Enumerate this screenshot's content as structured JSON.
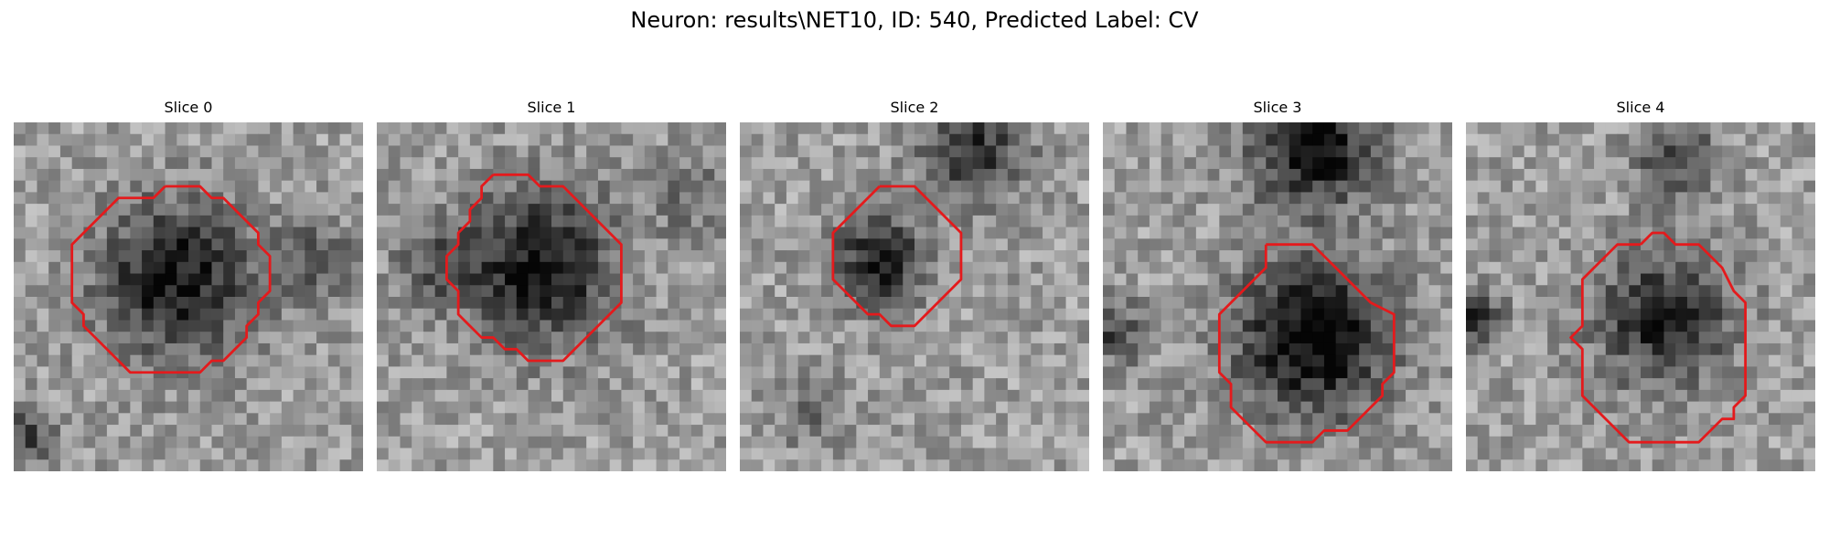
{
  "figure": {
    "suptitle": "Neuron: results\\NET10, ID: 540, Predicted Label: CV",
    "contour_color": "#e41a1c",
    "colormap": "gray",
    "grid_size": 30
  },
  "slices": [
    {
      "title": "Slice 0",
      "contour": [
        [
          13,
          5.5
        ],
        [
          16,
          5.5
        ],
        [
          17,
          6.5
        ],
        [
          18,
          6.5
        ],
        [
          19,
          7.5
        ],
        [
          20,
          8.5
        ],
        [
          21,
          9.5
        ],
        [
          21,
          10.5
        ],
        [
          22,
          11.5
        ],
        [
          22,
          14.5
        ],
        [
          21,
          15.5
        ],
        [
          21,
          16.5
        ],
        [
          20,
          17.5
        ],
        [
          20,
          18.5
        ],
        [
          19,
          19.5
        ],
        [
          18,
          20.5
        ],
        [
          17,
          20.5
        ],
        [
          16,
          21.5
        ],
        [
          10,
          21.5
        ],
        [
          9,
          20.5
        ],
        [
          8,
          19.5
        ],
        [
          7,
          18.5
        ],
        [
          6,
          17.5
        ],
        [
          6,
          16.5
        ],
        [
          5,
          15.5
        ],
        [
          5,
          10.5
        ],
        [
          6,
          9.5
        ],
        [
          7,
          8.5
        ],
        [
          8,
          7.5
        ],
        [
          9,
          6.5
        ],
        [
          12,
          6.5
        ],
        [
          13,
          5.5
        ]
      ]
    },
    {
      "title": "Slice 1",
      "contour": [
        [
          10,
          4.5
        ],
        [
          13,
          4.5
        ],
        [
          14,
          5.5
        ],
        [
          16,
          5.5
        ],
        [
          17,
          6.5
        ],
        [
          18,
          7.5
        ],
        [
          19,
          8.5
        ],
        [
          20,
          9.5
        ],
        [
          21,
          10.5
        ],
        [
          21,
          15.5
        ],
        [
          20,
          16.5
        ],
        [
          19,
          17.5
        ],
        [
          18,
          18.5
        ],
        [
          17,
          19.5
        ],
        [
          16,
          20.5
        ],
        [
          13,
          20.5
        ],
        [
          12,
          19.5
        ],
        [
          11,
          19.5
        ],
        [
          10,
          18.5
        ],
        [
          9,
          18.5
        ],
        [
          8,
          17.5
        ],
        [
          7,
          16.5
        ],
        [
          7,
          14.5
        ],
        [
          6,
          13.5
        ],
        [
          6,
          11.5
        ],
        [
          7,
          10.5
        ],
        [
          7,
          9.5
        ],
        [
          8,
          8.5
        ],
        [
          8,
          7.5
        ],
        [
          9,
          6.5
        ],
        [
          9,
          5.5
        ],
        [
          10,
          4.5
        ]
      ]
    },
    {
      "title": "Slice 2",
      "contour": [
        [
          12,
          5.5
        ],
        [
          15,
          5.5
        ],
        [
          16,
          6.5
        ],
        [
          17,
          7.5
        ],
        [
          18,
          8.5
        ],
        [
          19,
          9.5
        ],
        [
          19,
          13.5
        ],
        [
          18,
          14.5
        ],
        [
          17,
          15.5
        ],
        [
          16,
          16.5
        ],
        [
          15,
          17.5
        ],
        [
          13,
          17.5
        ],
        [
          12,
          16.5
        ],
        [
          11,
          16.5
        ],
        [
          10,
          15.5
        ],
        [
          9,
          14.5
        ],
        [
          8,
          13.5
        ],
        [
          8,
          9.5
        ],
        [
          9,
          8.5
        ],
        [
          10,
          7.5
        ],
        [
          11,
          6.5
        ],
        [
          12,
          5.5
        ]
      ]
    },
    {
      "title": "Slice 3",
      "contour": [
        [
          14,
          10.5
        ],
        [
          18,
          10.5
        ],
        [
          19,
          11.5
        ],
        [
          20,
          12.5
        ],
        [
          21,
          13.5
        ],
        [
          22,
          14.5
        ],
        [
          23,
          15.5
        ],
        [
          25,
          16.5
        ],
        [
          25,
          21.5
        ],
        [
          24,
          22.5
        ],
        [
          24,
          23.5
        ],
        [
          23,
          24.5
        ],
        [
          22,
          25.5
        ],
        [
          21,
          26.5
        ],
        [
          19,
          26.5
        ],
        [
          18,
          27.5
        ],
        [
          14,
          27.5
        ],
        [
          13,
          26.5
        ],
        [
          12,
          25.5
        ],
        [
          11,
          24.5
        ],
        [
          11,
          22.5
        ],
        [
          10,
          21.5
        ],
        [
          10,
          16.5
        ],
        [
          11,
          15.5
        ],
        [
          12,
          14.5
        ],
        [
          13,
          13.5
        ],
        [
          14,
          12.5
        ],
        [
          14,
          10.5
        ]
      ]
    },
    {
      "title": "Slice 4",
      "contour": [
        [
          15,
          10.5
        ],
        [
          16,
          9.5
        ],
        [
          17,
          9.5
        ],
        [
          18,
          10.5
        ],
        [
          20,
          10.5
        ],
        [
          21,
          11.5
        ],
        [
          22,
          12.5
        ],
        [
          23,
          14.5
        ],
        [
          24,
          15.5
        ],
        [
          24,
          23.5
        ],
        [
          23,
          24.5
        ],
        [
          23,
          25.5
        ],
        [
          22,
          25.5
        ],
        [
          21,
          26.5
        ],
        [
          20,
          27.5
        ],
        [
          14,
          27.5
        ],
        [
          13,
          26.5
        ],
        [
          12,
          25.5
        ],
        [
          11,
          24.5
        ],
        [
          10,
          23.5
        ],
        [
          10,
          19.5
        ],
        [
          9,
          18.5
        ],
        [
          10,
          17.5
        ],
        [
          10,
          13.5
        ],
        [
          11,
          12.5
        ],
        [
          12,
          11.5
        ],
        [
          13,
          10.5
        ],
        [
          15,
          10.5
        ]
      ]
    }
  ]
}
